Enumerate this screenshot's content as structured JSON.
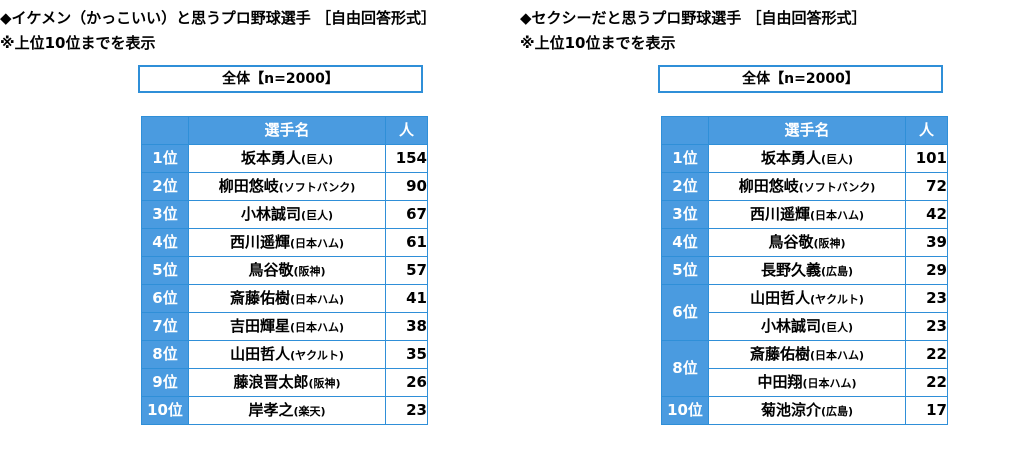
{
  "left": {
    "title": "◆イケメン（かっこいい）と思うプロ野球選手 ［自由回答形式］",
    "subtitle": "※上位10位までを表示",
    "group": "全体【n=2000】",
    "headers": {
      "name": "選手名",
      "count": "人"
    },
    "rows": [
      {
        "rank": "1位",
        "name": "坂本勇人",
        "team": "(巨人)",
        "count": "154"
      },
      {
        "rank": "2位",
        "name": "柳田悠岐",
        "team": "(ソフトバンク)",
        "count": "90"
      },
      {
        "rank": "3位",
        "name": "小林誠司",
        "team": "(巨人)",
        "count": "67"
      },
      {
        "rank": "4位",
        "name": "西川遥輝",
        "team": "(日本ハム)",
        "count": "61"
      },
      {
        "rank": "5位",
        "name": "鳥谷敬",
        "team": "(阪神)",
        "count": "57"
      },
      {
        "rank": "6位",
        "name": "斎藤佑樹",
        "team": "(日本ハム)",
        "count": "41"
      },
      {
        "rank": "7位",
        "name": "吉田輝星",
        "team": "(日本ハム)",
        "count": "38"
      },
      {
        "rank": "8位",
        "name": "山田哲人",
        "team": "(ヤクルト)",
        "count": "35"
      },
      {
        "rank": "9位",
        "name": "藤浪晋太郎",
        "team": "(阪神)",
        "count": "26"
      },
      {
        "rank": "10位",
        "name": "岸孝之",
        "team": "(楽天)",
        "count": "23"
      }
    ]
  },
  "right": {
    "title": "◆セクシーだと思うプロ野球選手 ［自由回答形式］",
    "subtitle": "※上位10位までを表示",
    "group": "全体【n=2000】",
    "headers": {
      "name": "選手名",
      "count": "人"
    },
    "rows": [
      {
        "rank": "1位",
        "name": "坂本勇人",
        "team": "(巨人)",
        "count": "101"
      },
      {
        "rank": "2位",
        "name": "柳田悠岐",
        "team": "(ソフトバンク)",
        "count": "72"
      },
      {
        "rank": "3位",
        "name": "西川遥輝",
        "team": "(日本ハム)",
        "count": "42"
      },
      {
        "rank": "4位",
        "name": "鳥谷敬",
        "team": "(阪神)",
        "count": "39"
      },
      {
        "rank": "5位",
        "name": "長野久義",
        "team": "(広島)",
        "count": "29"
      },
      {
        "rank": "6位",
        "name": "山田哲人",
        "team": "(ヤクルト)",
        "count": "23"
      },
      {
        "rank": "",
        "name": "小林誠司",
        "team": "(巨人)",
        "count": "23"
      },
      {
        "rank": "8位",
        "name": "斎藤佑樹",
        "team": "(日本ハム)",
        "count": "22"
      },
      {
        "rank": "",
        "name": "中田翔",
        "team": "(日本ハム)",
        "count": "22"
      },
      {
        "rank": "10位",
        "name": "菊池涼介",
        "team": "(広島)",
        "count": "17"
      }
    ]
  }
}
